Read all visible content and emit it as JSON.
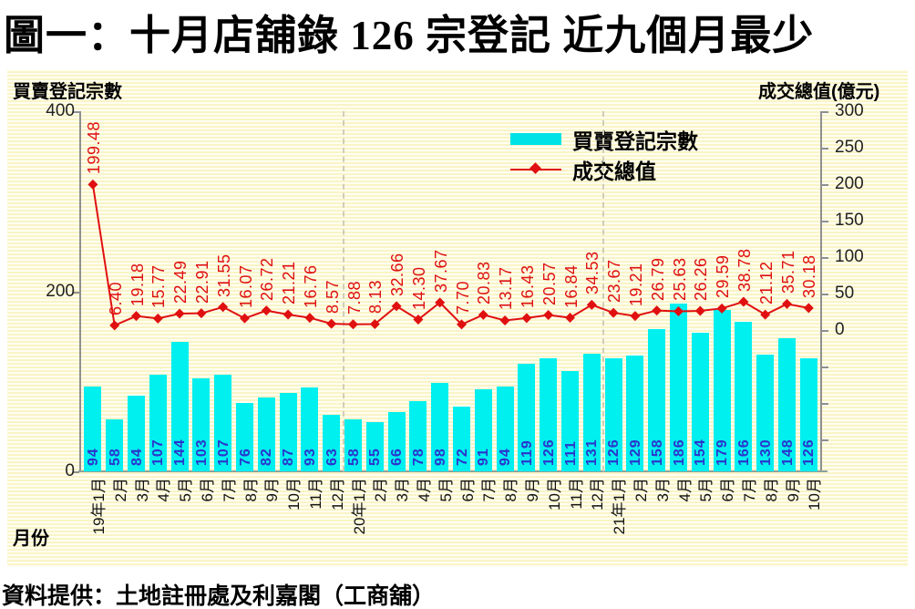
{
  "title": "圖一：十月店舖錄 126 宗登記  近九個月最少",
  "source": "資料提供：土地註冊處及利嘉閣（工商舖）",
  "axes": {
    "left_title": "買賣登記宗數",
    "right_title": "成交總值(億元)",
    "x_title": "月份"
  },
  "legend": {
    "bars_label": "買賣登記宗數",
    "line_label": "成交總值"
  },
  "colors": {
    "bar": "#00efef",
    "line": "#e01010",
    "bar_value_text": "#2b35cc",
    "line_value_text": "#de1010",
    "background_stripe": "#faf4c6"
  },
  "chart_data": {
    "type": "bar",
    "title": "圖一：十月店舖錄 126 宗登記  近九個月最少",
    "categories": [
      "19年1月",
      "2月",
      "3月",
      "4月",
      "5月",
      "6月",
      "7月",
      "8月",
      "9月",
      "10月",
      "11月",
      "12月",
      "20年1月",
      "2月",
      "3月",
      "4月",
      "5月",
      "6月",
      "7月",
      "8月",
      "9月",
      "10月",
      "11月",
      "12月",
      "21年1月",
      "2月",
      "3月",
      "4月",
      "5月",
      "6月",
      "7月",
      "8月",
      "9月",
      "10月"
    ],
    "series": [
      {
        "name": "買賣登記宗數",
        "type": "bar",
        "axis": "left",
        "values": [
          94,
          58,
          84,
          107,
          144,
          103,
          107,
          76,
          82,
          87,
          93,
          63,
          58,
          55,
          66,
          78,
          98,
          72,
          91,
          94,
          119,
          126,
          111,
          131,
          126,
          129,
          158,
          186,
          154,
          179,
          166,
          130,
          148,
          126
        ]
      },
      {
        "name": "成交總值",
        "type": "line",
        "axis": "right",
        "values": [
          199.48,
          6.4,
          19.18,
          15.77,
          22.49,
          22.91,
          31.55,
          16.07,
          26.72,
          21.21,
          16.76,
          8.57,
          7.88,
          8.13,
          32.66,
          14.3,
          37.67,
          7.7,
          20.83,
          13.17,
          16.43,
          20.57,
          16.84,
          34.53,
          23.67,
          19.21,
          26.79,
          25.63,
          26.26,
          29.59,
          38.78,
          21.12,
          35.71,
          30.18
        ],
        "labels": [
          "199.48",
          "6.40",
          "19.18",
          "15.77",
          "22.49",
          "22.91",
          "31.55",
          "16.07",
          "26.72",
          "21.21",
          "16.76",
          "8.57",
          "7.88",
          "8.13",
          "32.66",
          "14.30",
          "37.67",
          "7.70",
          "20.83",
          "13.17",
          "16.43",
          "20.57",
          "16.84",
          "34.53",
          "23.67",
          "19.21",
          "26.79",
          "25.63",
          "26.26",
          "29.59",
          "38.78",
          "21.12",
          "35.71",
          "30.18"
        ]
      }
    ],
    "left_axis": {
      "label": "買賣登記宗數",
      "range": [
        0,
        400
      ],
      "ticks": [
        400,
        200,
        0
      ]
    },
    "right_axis": {
      "label": "成交總值(億元)",
      "range_labeled": [
        0,
        300
      ],
      "ticks": [
        300,
        250,
        200,
        150,
        100,
        50,
        0
      ]
    },
    "xlabel": "月份",
    "grid": "off",
    "legend_position": "top-right",
    "year_separators_before": [
      "20年1月",
      "21年1月"
    ]
  }
}
